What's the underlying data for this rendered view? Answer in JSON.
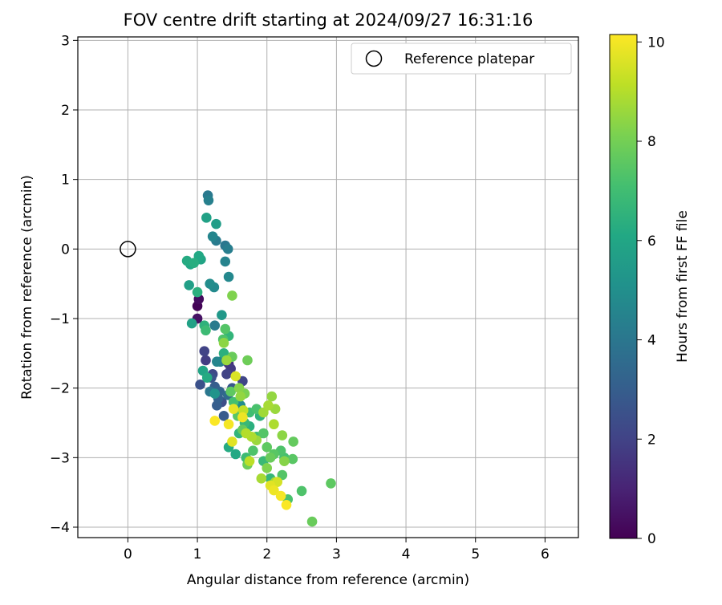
{
  "chart_data": {
    "type": "scatter",
    "title": "FOV centre drift starting at 2024/09/27 16:31:16",
    "xlabel": "Angular distance from reference (arcmin)",
    "ylabel": "Rotation from reference (arcmin)",
    "xlim": [
      -0.72,
      6.48
    ],
    "ylim": [
      -4.15,
      3.05
    ],
    "xticks": [
      0,
      1,
      2,
      3,
      4,
      5,
      6
    ],
    "yticks": [
      3,
      2,
      1,
      0,
      -1,
      -2,
      -3,
      -4
    ],
    "grid": true,
    "legend": {
      "placement": "top-right",
      "entries": [
        "Reference platepar"
      ]
    },
    "reference_point": {
      "x": 0,
      "y": 0,
      "label": "Reference platepar"
    },
    "colorbar": {
      "label": "Hours from first FF file",
      "colormap": "viridis",
      "range": [
        0,
        10.15
      ],
      "ticks": [
        0,
        2,
        4,
        6,
        8,
        10
      ]
    },
    "points": [
      {
        "x": 1.0,
        "y": -0.82,
        "t": 0.1
      },
      {
        "x": 1.02,
        "y": -0.72,
        "t": 0.3
      },
      {
        "x": 1.0,
        "y": -1.0,
        "t": 0.5
      },
      {
        "x": 1.04,
        "y": -1.95,
        "t": 2.5
      },
      {
        "x": 1.1,
        "y": -1.47,
        "t": 2.0
      },
      {
        "x": 1.12,
        "y": -1.6,
        "t": 1.8
      },
      {
        "x": 1.2,
        "y": -1.85,
        "t": 2.6
      },
      {
        "x": 1.25,
        "y": -1.98,
        "t": 3.0
      },
      {
        "x": 1.22,
        "y": -1.8,
        "t": 2.2
      },
      {
        "x": 1.3,
        "y": -2.15,
        "t": 3.1
      },
      {
        "x": 1.35,
        "y": -2.2,
        "t": 2.4
      },
      {
        "x": 1.28,
        "y": -2.25,
        "t": 3.0
      },
      {
        "x": 1.4,
        "y": -1.55,
        "t": 1.2
      },
      {
        "x": 1.45,
        "y": -1.65,
        "t": 1.4
      },
      {
        "x": 1.42,
        "y": -1.8,
        "t": 2.0
      },
      {
        "x": 1.5,
        "y": -2.0,
        "t": 2.7
      },
      {
        "x": 1.38,
        "y": -2.4,
        "t": 2.9
      },
      {
        "x": 1.55,
        "y": -2.3,
        "t": 3.2
      },
      {
        "x": 1.65,
        "y": -1.9,
        "t": 2.1
      },
      {
        "x": 1.48,
        "y": -1.72,
        "t": 1.7
      },
      {
        "x": 1.32,
        "y": -2.05,
        "t": 3.3
      },
      {
        "x": 1.44,
        "y": -2.1,
        "t": 3.5
      },
      {
        "x": 1.15,
        "y": 0.77,
        "t": 4.1
      },
      {
        "x": 1.16,
        "y": 0.7,
        "t": 4.4
      },
      {
        "x": 1.22,
        "y": 0.18,
        "t": 4.6
      },
      {
        "x": 1.27,
        "y": 0.12,
        "t": 4.2
      },
      {
        "x": 1.4,
        "y": 0.05,
        "t": 4.0
      },
      {
        "x": 1.44,
        "y": 0.0,
        "t": 4.3
      },
      {
        "x": 1.4,
        "y": -0.18,
        "t": 4.5
      },
      {
        "x": 1.45,
        "y": -0.4,
        "t": 4.7
      },
      {
        "x": 1.18,
        "y": -0.5,
        "t": 4.9
      },
      {
        "x": 1.24,
        "y": -0.55,
        "t": 4.8
      },
      {
        "x": 1.25,
        "y": -1.1,
        "t": 4.2
      },
      {
        "x": 1.28,
        "y": -1.62,
        "t": 4.6
      },
      {
        "x": 1.33,
        "y": -1.62,
        "t": 4.4
      },
      {
        "x": 1.18,
        "y": -2.05,
        "t": 4.0
      },
      {
        "x": 1.25,
        "y": -2.08,
        "t": 5.2
      },
      {
        "x": 1.35,
        "y": -0.95,
        "t": 5.4
      },
      {
        "x": 1.62,
        "y": -2.25,
        "t": 4.9
      },
      {
        "x": 1.13,
        "y": 0.45,
        "t": 5.8
      },
      {
        "x": 1.27,
        "y": 0.36,
        "t": 5.6
      },
      {
        "x": 0.85,
        "y": -0.17,
        "t": 6.2
      },
      {
        "x": 0.9,
        "y": -0.22,
        "t": 6.0
      },
      {
        "x": 0.95,
        "y": -0.2,
        "t": 6.3
      },
      {
        "x": 1.02,
        "y": -0.1,
        "t": 6.1
      },
      {
        "x": 1.05,
        "y": -0.15,
        "t": 5.9
      },
      {
        "x": 0.88,
        "y": -0.52,
        "t": 5.7
      },
      {
        "x": 1.0,
        "y": -0.62,
        "t": 6.4
      },
      {
        "x": 0.92,
        "y": -1.07,
        "t": 5.8
      },
      {
        "x": 1.1,
        "y": -1.1,
        "t": 6.5
      },
      {
        "x": 1.12,
        "y": -1.17,
        "t": 6.9
      },
      {
        "x": 1.08,
        "y": -1.75,
        "t": 5.9
      },
      {
        "x": 1.14,
        "y": -1.85,
        "t": 6.2
      },
      {
        "x": 1.38,
        "y": -1.5,
        "t": 6.4
      },
      {
        "x": 1.45,
        "y": -1.25,
        "t": 6.6
      },
      {
        "x": 1.45,
        "y": -2.85,
        "t": 6.2
      },
      {
        "x": 1.55,
        "y": -2.95,
        "t": 6.1
      },
      {
        "x": 1.6,
        "y": -2.65,
        "t": 6.6
      },
      {
        "x": 1.75,
        "y": -2.55,
        "t": 6.4
      },
      {
        "x": 1.7,
        "y": -3.0,
        "t": 6.9
      },
      {
        "x": 1.9,
        "y": -2.4,
        "t": 6.5
      },
      {
        "x": 1.95,
        "y": -3.05,
        "t": 6.8
      },
      {
        "x": 2.05,
        "y": -3.3,
        "t": 6.7
      },
      {
        "x": 1.85,
        "y": -2.7,
        "t": 7.0
      },
      {
        "x": 1.75,
        "y": -2.35,
        "t": 7.0
      },
      {
        "x": 1.68,
        "y": -2.5,
        "t": 6.8
      },
      {
        "x": 1.4,
        "y": -1.15,
        "t": 7.4
      },
      {
        "x": 1.37,
        "y": -1.3,
        "t": 7.3
      },
      {
        "x": 1.5,
        "y": -1.55,
        "t": 7.8
      },
      {
        "x": 1.48,
        "y": -2.05,
        "t": 7.6
      },
      {
        "x": 1.52,
        "y": -2.2,
        "t": 7.1
      },
      {
        "x": 1.58,
        "y": -2.4,
        "t": 7.5
      },
      {
        "x": 1.65,
        "y": -2.6,
        "t": 7.7
      },
      {
        "x": 1.72,
        "y": -1.6,
        "t": 7.9
      },
      {
        "x": 1.85,
        "y": -2.3,
        "t": 7.2
      },
      {
        "x": 1.95,
        "y": -2.65,
        "t": 7.4
      },
      {
        "x": 2.0,
        "y": -2.85,
        "t": 7.6
      },
      {
        "x": 2.05,
        "y": -3.0,
        "t": 7.8
      },
      {
        "x": 2.1,
        "y": -2.95,
        "t": 7.5
      },
      {
        "x": 2.2,
        "y": -2.9,
        "t": 7.3
      },
      {
        "x": 2.25,
        "y": -3.0,
        "t": 7.1
      },
      {
        "x": 2.22,
        "y": -3.25,
        "t": 7.4
      },
      {
        "x": 2.3,
        "y": -3.6,
        "t": 7.2
      },
      {
        "x": 2.38,
        "y": -2.77,
        "t": 7.7
      },
      {
        "x": 2.37,
        "y": -3.02,
        "t": 7.5
      },
      {
        "x": 2.5,
        "y": -3.48,
        "t": 7.3
      },
      {
        "x": 2.92,
        "y": -3.37,
        "t": 7.6
      },
      {
        "x": 2.65,
        "y": -3.92,
        "t": 7.8
      },
      {
        "x": 1.72,
        "y": -3.1,
        "t": 7.9
      },
      {
        "x": 1.8,
        "y": -2.9,
        "t": 7.3
      },
      {
        "x": 1.5,
        "y": -0.67,
        "t": 8.2
      },
      {
        "x": 1.38,
        "y": -1.35,
        "t": 8.4
      },
      {
        "x": 1.42,
        "y": -1.6,
        "t": 8.6
      },
      {
        "x": 1.6,
        "y": -2.0,
        "t": 8.3
      },
      {
        "x": 1.62,
        "y": -2.12,
        "t": 8.5
      },
      {
        "x": 1.68,
        "y": -2.08,
        "t": 8.1
      },
      {
        "x": 1.95,
        "y": -2.35,
        "t": 8.7
      },
      {
        "x": 2.02,
        "y": -2.25,
        "t": 8.8
      },
      {
        "x": 2.07,
        "y": -2.12,
        "t": 8.5
      },
      {
        "x": 2.1,
        "y": -2.52,
        "t": 8.9
      },
      {
        "x": 2.12,
        "y": -2.3,
        "t": 8.6
      },
      {
        "x": 2.22,
        "y": -2.68,
        "t": 8.4
      },
      {
        "x": 2.25,
        "y": -3.05,
        "t": 8.3
      },
      {
        "x": 2.12,
        "y": -3.35,
        "t": 8.7
      },
      {
        "x": 2.0,
        "y": -3.15,
        "t": 8.2
      },
      {
        "x": 1.92,
        "y": -3.3,
        "t": 8.8
      },
      {
        "x": 1.78,
        "y": -2.7,
        "t": 8.9
      },
      {
        "x": 1.85,
        "y": -2.75,
        "t": 8.6
      },
      {
        "x": 1.7,
        "y": -2.65,
        "t": 9.0
      },
      {
        "x": 1.66,
        "y": -2.32,
        "t": 9.2
      },
      {
        "x": 1.75,
        "y": -3.05,
        "t": 9.1
      },
      {
        "x": 1.55,
        "y": -1.83,
        "t": 9.6
      },
      {
        "x": 1.52,
        "y": -2.3,
        "t": 9.8
      },
      {
        "x": 1.45,
        "y": -2.52,
        "t": 10.0
      },
      {
        "x": 1.5,
        "y": -2.77,
        "t": 9.7
      },
      {
        "x": 1.25,
        "y": -2.47,
        "t": 10.1
      },
      {
        "x": 1.65,
        "y": -2.42,
        "t": 9.9
      },
      {
        "x": 2.05,
        "y": -3.4,
        "t": 9.7
      },
      {
        "x": 2.1,
        "y": -3.47,
        "t": 9.9
      },
      {
        "x": 2.2,
        "y": -3.55,
        "t": 10.0
      },
      {
        "x": 2.28,
        "y": -3.68,
        "t": 10.1
      },
      {
        "x": 2.15,
        "y": -3.35,
        "t": 9.5
      }
    ]
  }
}
